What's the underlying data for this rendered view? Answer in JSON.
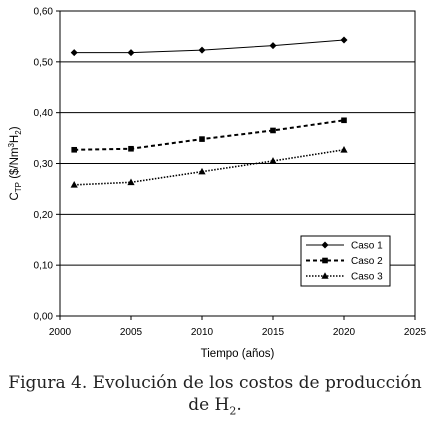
{
  "chart_data": {
    "type": "line",
    "xlabel": "Tiempo (años)",
    "ylabel": {
      "base": "C",
      "sub": "TP",
      "rest": " ($/Nm",
      "sup": "3",
      "rest2": "H",
      "sub2": "2",
      "end": ")"
    },
    "xlim": [
      2000,
      2025
    ],
    "ylim": [
      0.0,
      0.6
    ],
    "xticks": [
      "2000",
      "2005",
      "2010",
      "2015",
      "2020",
      "2025"
    ],
    "yticks": [
      "0,00",
      "0,10",
      "0,20",
      "0,30",
      "0,40",
      "0,50",
      "0,60"
    ],
    "grid": "horizontal",
    "legend_position": "bottom-right",
    "series": [
      {
        "name": "Caso 1",
        "marker": "diamond",
        "line": "solid",
        "x": [
          2001,
          2005,
          2010,
          2015,
          2020
        ],
        "y": [
          0.518,
          0.518,
          0.523,
          0.532,
          0.543
        ]
      },
      {
        "name": "Caso 2",
        "marker": "square",
        "line": "dashed",
        "x": [
          2001,
          2005,
          2010,
          2015,
          2020
        ],
        "y": [
          0.327,
          0.329,
          0.348,
          0.365,
          0.385
        ]
      },
      {
        "name": "Caso 3",
        "marker": "triangle",
        "line": "dotted",
        "x": [
          2001,
          2005,
          2010,
          2015,
          2020
        ],
        "y": [
          0.258,
          0.263,
          0.284,
          0.305,
          0.327
        ]
      }
    ]
  },
  "caption": {
    "line1": "Figura 4. Evolución de los costos de producción",
    "line2_pre": "de H",
    "line2_sub": "2",
    "line2_post": "."
  }
}
